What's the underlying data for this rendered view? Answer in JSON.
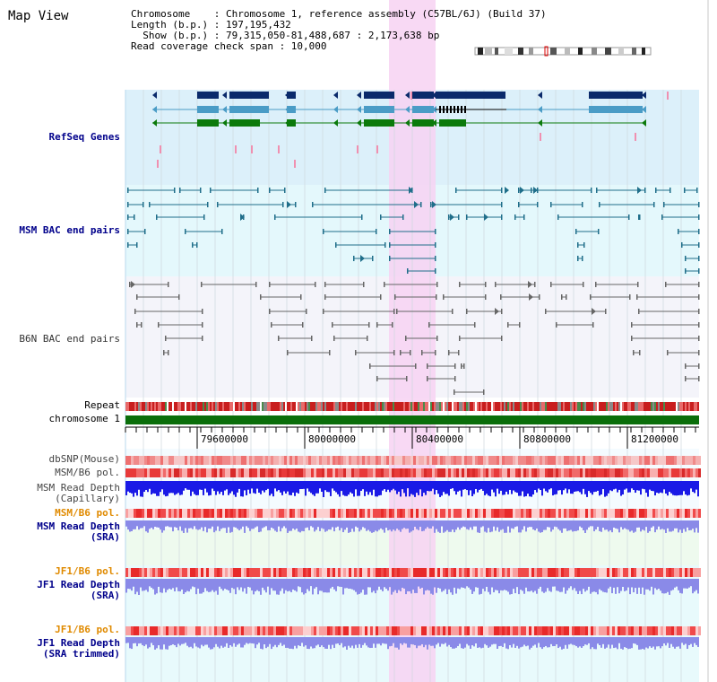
{
  "header": {
    "title": "Map View",
    "chromosome_line": "Chromosome    : Chromosome 1, reference assembly (C57BL/6J) (Build 37)",
    "length_line": "Length (b.p.) : 197,195,432",
    "show_line": "  Show (b.p.) : 79,315,050-81,488,687 : 2,173,638 bp",
    "coverage_line": "Read coverage check span : 10,000"
  },
  "tracks": {
    "refseq": "RefSeq Genes",
    "msm_bac": "MSM BAC end pairs",
    "b6n_bac": "B6N BAC end pairs",
    "repeat": "Repeat",
    "chromosome": "chromosome 1",
    "dbsnp": "dbSNP(Mouse)",
    "msm_b6_pol_1": "MSM/B6 pol.",
    "msm_read_depth_cap_1": "MSM Read Depth",
    "msm_read_depth_cap_2": "(Capillary)",
    "msm_b6_pol_2": "MSM/B6 pol.",
    "msm_read_depth_sra_1": "MSM Read Depth",
    "msm_read_depth_sra_2": "(SRA)",
    "jf1_b6_pol_1": "JF1/B6 pol.",
    "jf1_read_depth_sra_1": "JF1 Read Depth",
    "jf1_read_depth_sra_2": "(SRA)",
    "jf1_b6_pol_2": "JF1/B6 pol.",
    "jf1_read_depth_trim_1": "JF1 Read Depth",
    "jf1_read_depth_trim_2": "(SRA trimmed)"
  },
  "ruler": {
    "ticks": [
      "79600000",
      "80000000",
      "80400000",
      "80800000",
      "81200000"
    ]
  },
  "colors": {
    "refseq_bg": "#dcf0fa",
    "msm_bg": "#e4f8fc",
    "b6n_bg": "#f4f4fa",
    "highlight": "#f7d2f2",
    "gene_navy": "#0a2a6b",
    "gene_blue": "#4a9cc6",
    "gene_green": "#0b7a0b",
    "chromosome_green": "#0a6e0a",
    "depth_blue": "#1a1ae6",
    "depth_periwinkle": "#8a8ae8"
  }
}
